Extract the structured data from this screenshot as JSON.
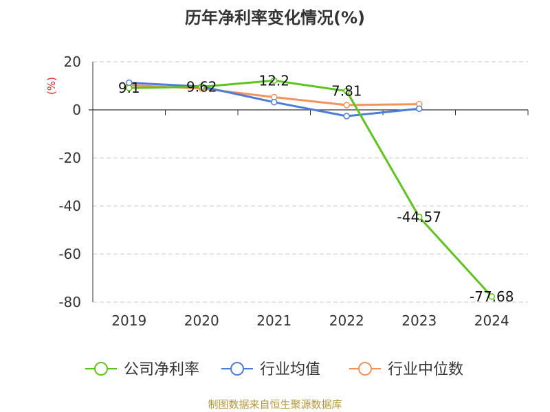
{
  "chart_data": {
    "type": "line",
    "title": "历年净利率变化情况(%)",
    "ylabel": "(%)",
    "xlabel": "",
    "categories": [
      "2019",
      "2020",
      "2021",
      "2022",
      "2023",
      "2024"
    ],
    "ylim": [
      -80,
      20
    ],
    "yticks": [
      20,
      0,
      -20,
      -40,
      -60,
      -80
    ],
    "grid": true,
    "legend_position": "bottom",
    "series": [
      {
        "name": "公司净利率",
        "color": "#5cc41e",
        "values": [
          9.1,
          9.62,
          12.2,
          7.81,
          -44.57,
          -77.68
        ],
        "labels": [
          "9.1",
          "9.62",
          "12.2",
          "7.81",
          "-44.57",
          "-77.68"
        ]
      },
      {
        "name": "行业均值",
        "color": "#4b7bdb",
        "values": [
          11.3,
          9.7,
          3.2,
          -2.6,
          0.5,
          null
        ]
      },
      {
        "name": "行业中位数",
        "color": "#f4925b",
        "values": [
          10.3,
          8.9,
          5.3,
          2.0,
          2.4,
          null
        ]
      }
    ]
  },
  "source": "制图数据来自恒生聚源数据库"
}
